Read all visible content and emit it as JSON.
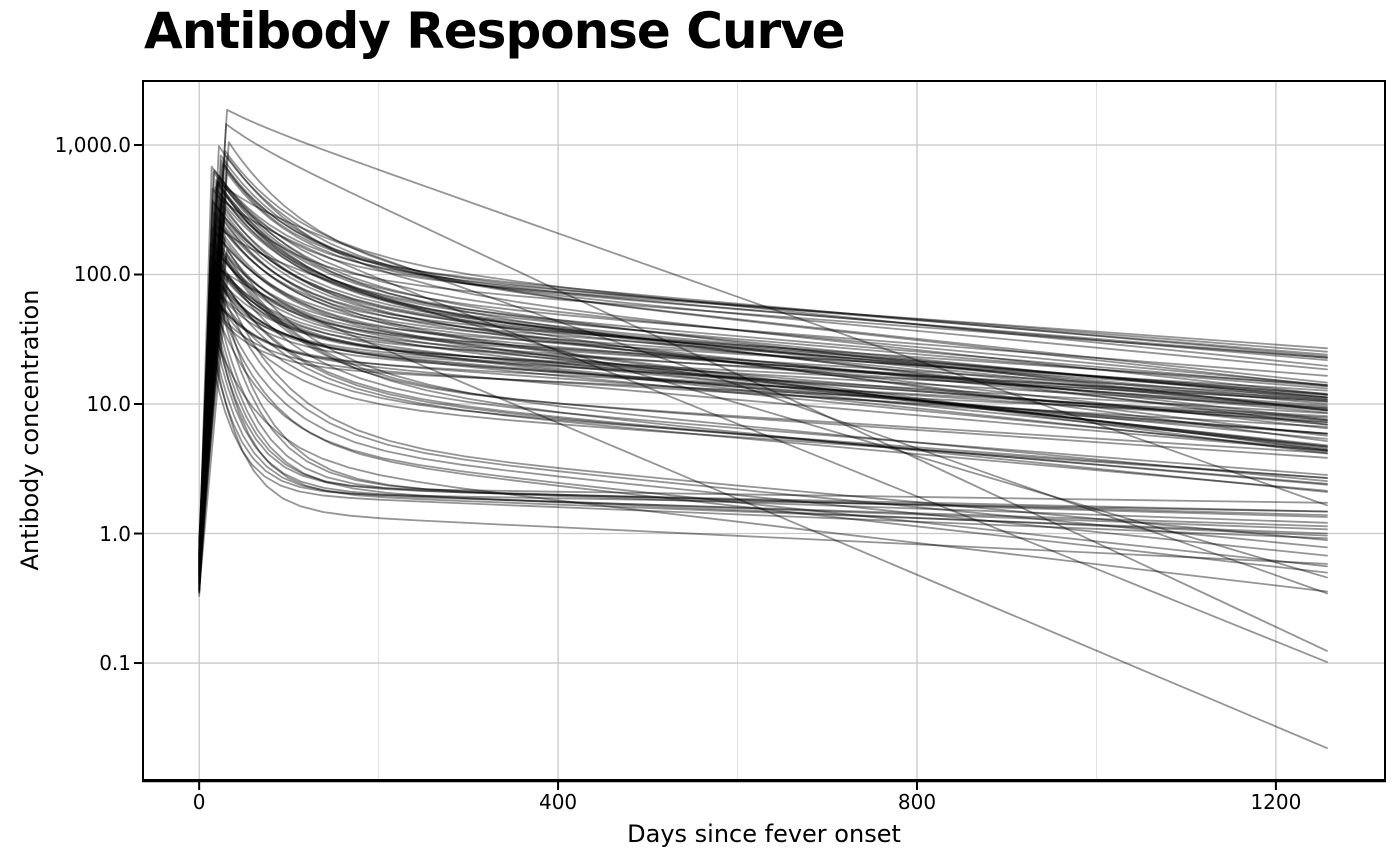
{
  "chart_data": {
    "type": "line",
    "title": "Antibody Response Curve",
    "xlabel": "Days since fever onset",
    "ylabel": "Antibody concentration",
    "x_ticks": [
      {
        "value": 0,
        "label": "0"
      },
      {
        "value": 400,
        "label": "400"
      },
      {
        "value": 800,
        "label": "800"
      },
      {
        "value": 1200,
        "label": "1200"
      }
    ],
    "x_minor_gridlines": [
      200,
      600,
      1000
    ],
    "y_ticks": [
      {
        "value": 1000,
        "label": "1,000.0"
      },
      {
        "value": 100,
        "label": "100.0"
      },
      {
        "value": 10,
        "label": "10.0"
      },
      {
        "value": 1,
        "label": "1.0"
      },
      {
        "value": 0.1,
        "label": "0.1"
      }
    ],
    "x_domain": [
      -62.6,
      1321.6
    ],
    "y_log_domain": [
      -1.903,
      3.494
    ],
    "grid": true,
    "legend": false,
    "y_scale": "log10",
    "line_color": "#000000",
    "line_alpha": 0.42,
    "line_width": 1.8,
    "major_grid_color": "#c8c8c8",
    "minor_grid_color": "#dcdcdc",
    "t_start": 0,
    "t_end": 1257,
    "n_curves": 100,
    "model": "Per curve params [y0, P, tp, D1, T, r2]: value rises log-linearly from y0 at day 0 to peak P at day tp, then log10 v(t) = log10(P) - r2*(t-tp) - D1*(1 - exp(-(t-tp)/T))",
    "curves": [
      [
        0.52,
        210,
        18,
        0.62,
        70,
        0.00062
      ],
      [
        0.71,
        85,
        24,
        0.48,
        55,
        0.00055
      ],
      [
        0.44,
        460,
        15,
        0.82,
        90,
        0.00071
      ],
      [
        0.6,
        130,
        28,
        0.55,
        60,
        0.00048
      ],
      [
        0.38,
        320,
        21,
        0.7,
        75,
        0.00085
      ],
      [
        0.9,
        55,
        16,
        0.42,
        50,
        0.0004
      ],
      [
        0.47,
        700,
        26,
        0.75,
        85,
        0.00058
      ],
      [
        0.66,
        175,
        13,
        0.6,
        65,
        0.00078
      ],
      [
        0.55,
        95,
        30,
        0.52,
        58,
        0.00035
      ],
      [
        0.41,
        540,
        19,
        0.88,
        95,
        0.00092
      ],
      [
        0.78,
        240,
        23,
        0.66,
        72,
        0.00052
      ],
      [
        0.36,
        68,
        17,
        0.45,
        48,
        0.0006
      ],
      [
        0.58,
        390,
        27,
        0.78,
        88,
        0.00066
      ],
      [
        0.69,
        150,
        20,
        0.58,
        62,
        0.00044
      ],
      [
        0.49,
        820,
        31,
        0.92,
        100,
        0.00075
      ],
      [
        0.85,
        110,
        14,
        0.5,
        56,
        0.0007
      ],
      [
        0.43,
        280,
        25,
        0.72,
        78,
        0.00088
      ],
      [
        0.62,
        47,
        22,
        0.38,
        45,
        0.00032
      ],
      [
        0.53,
        620,
        16,
        0.85,
        92,
        0.0008
      ],
      [
        0.74,
        195,
        29,
        0.64,
        68,
        0.00057
      ],
      [
        0.4,
        88,
        12,
        0.46,
        52,
        0.00049
      ],
      [
        0.67,
        350,
        24,
        0.74,
        82,
        0.00061
      ],
      [
        0.51,
        125,
        18,
        0.56,
        60,
        0.00073
      ],
      [
        0.33,
        480,
        28,
        0.8,
        86,
        0.00054
      ],
      [
        0.81,
        72,
        21,
        0.44,
        54,
        0.00045
      ],
      [
        0.46,
        230,
        15,
        0.68,
        74,
        0.00083
      ],
      [
        0.59,
        160,
        26,
        0.59,
        64,
        0.00051
      ],
      [
        0.72,
        520,
        20,
        0.83,
        90,
        0.00069
      ],
      [
        0.37,
        100,
        32,
        0.53,
        58,
        0.00041
      ],
      [
        0.64,
        300,
        17,
        0.71,
        76,
        0.00077
      ],
      [
        0.56,
        58,
        23,
        0.4,
        46,
        0.00037
      ],
      [
        0.48,
        410,
        30,
        0.79,
        84,
        0.00063
      ],
      [
        0.7,
        140,
        13,
        0.57,
        61,
        0.00059
      ],
      [
        0.42,
        260,
        27,
        0.69,
        73,
        0.00047
      ],
      [
        0.88,
        92,
        19,
        0.49,
        53,
        0.00067
      ],
      [
        0.5,
        580,
        22,
        0.86,
        94,
        0.00086
      ],
      [
        0.63,
        185,
        16,
        0.63,
        66,
        0.00043
      ],
      [
        0.39,
        78,
        25,
        0.43,
        49,
        0.00056
      ],
      [
        0.76,
        330,
        29,
        0.76,
        80,
        0.00072
      ],
      [
        0.45,
        115,
        21,
        0.54,
        59,
        0.00039
      ],
      [
        0.61,
        680,
        14,
        0.89,
        96,
        0.00064
      ],
      [
        0.54,
        205,
        24,
        0.65,
        69,
        0.00081
      ],
      [
        0.83,
        63,
        18,
        0.41,
        47,
        0.0005
      ],
      [
        0.35,
        440,
        26,
        0.81,
        87,
        0.00058
      ],
      [
        0.68,
        155,
        31,
        0.61,
        63,
        0.00046
      ],
      [
        0.57,
        270,
        19,
        0.7,
        75,
        0.0009
      ],
      [
        0.44,
        105,
        23,
        0.51,
        57,
        0.00053
      ],
      [
        0.79,
        370,
        15,
        0.77,
        83,
        0.00068
      ],
      [
        0.52,
        82,
        28,
        0.47,
        51,
        0.00042
      ],
      [
        0.65,
        500,
        20,
        0.84,
        91,
        0.00079
      ],
      [
        0.6,
        760,
        25,
        0.75,
        70,
        0.00062
      ],
      [
        0.48,
        900,
        29,
        0.8,
        88,
        0.0007
      ],
      [
        0.71,
        640,
        17,
        0.72,
        79,
        0.00055
      ],
      [
        0.55,
        1050,
        33,
        0.95,
        98,
        0.00074
      ],
      [
        0.66,
        560,
        21,
        0.7,
        77,
        0.0005
      ],
      [
        0.42,
        830,
        24,
        0.85,
        90,
        0.00065
      ],
      [
        0.74,
        470,
        18,
        0.67,
        74,
        0.00052
      ],
      [
        0.5,
        720,
        27,
        0.78,
        85,
        0.0006
      ],
      [
        0.63,
        980,
        22,
        0.9,
        95,
        0.00077
      ],
      [
        0.57,
        610,
        31,
        0.73,
        81,
        0.00057
      ],
      [
        0.45,
        38,
        13,
        1.25,
        34,
        0.00022
      ],
      [
        0.58,
        52,
        16,
        1.35,
        40,
        0.00018
      ],
      [
        0.37,
        29,
        11,
        1.15,
        30,
        0.00028
      ],
      [
        0.52,
        64,
        18,
        1.45,
        46,
        0.00015
      ],
      [
        0.68,
        44,
        14,
        1.3,
        36,
        0.00025
      ],
      [
        0.41,
        75,
        20,
        1.5,
        50,
        0.0002
      ],
      [
        0.55,
        33,
        12,
        1.2,
        32,
        0.00012
      ],
      [
        0.47,
        57,
        17,
        1.4,
        43,
        0.0003
      ],
      [
        0.62,
        48,
        15,
        1.32,
        38,
        0.0001
      ],
      [
        0.36,
        40,
        19,
        1.28,
        35,
        0.00026
      ],
      [
        0.59,
        85,
        22,
        1.55,
        52,
        0.00024
      ],
      [
        0.49,
        36,
        13,
        1.38,
        33,
        0.00033
      ],
      [
        0.4,
        1450,
        30,
        0.08,
        40,
        0.00325
      ],
      [
        0.53,
        380,
        24,
        0.12,
        45,
        0.0028
      ],
      [
        0.46,
        120,
        16,
        0.1,
        42,
        0.00293
      ],
      [
        0.61,
        520,
        21,
        0.15,
        48,
        0.00245
      ],
      [
        0.38,
        240,
        18,
        0.18,
        50,
        0.00205
      ],
      [
        0.56,
        1870,
        31,
        0.05,
        44,
        0.00245
      ],
      [
        0.7,
        120,
        25,
        0.95,
        85,
        0.00055
      ],
      [
        0.44,
        95,
        19,
        0.88,
        78,
        0.00062
      ],
      [
        0.58,
        160,
        23,
        1.02,
        92,
        0.0007
      ],
      [
        0.35,
        70,
        16,
        0.82,
        72,
        0.00048
      ],
      [
        0.66,
        135,
        28,
        0.98,
        88,
        0.00043
      ],
      [
        0.51,
        105,
        21,
        0.92,
        80,
        0.00058
      ],
      [
        0.73,
        180,
        26,
        1.05,
        95,
        0.00065
      ],
      [
        0.39,
        86,
        14,
        0.86,
        75,
        0.00052
      ],
      [
        0.62,
        145,
        30,
        1.0,
        90,
        0.00047
      ],
      [
        0.47,
        115,
        17,
        0.94,
        82,
        0.0006
      ],
      [
        0.54,
        60,
        15,
        1.1,
        60,
        0.00075
      ],
      [
        0.43,
        90,
        20,
        1.22,
        70,
        0.00068
      ],
      [
        0.65,
        42,
        12,
        1.05,
        55,
        0.00082
      ],
      [
        0.5,
        74,
        18,
        1.16,
        65,
        0.00071
      ],
      [
        0.37,
        55,
        24,
        1.08,
        58,
        0.00078
      ],
      [
        0.6,
        100,
        22,
        1.26,
        74,
        0.00064
      ],
      [
        0.56,
        420,
        23,
        0.76,
        84,
        0.00059
      ],
      [
        0.48,
        165,
        19,
        0.62,
        67,
        0.00074
      ],
      [
        0.69,
        310,
        27,
        0.73,
        79,
        0.00056
      ],
      [
        0.42,
        135,
        15,
        0.58,
        63,
        0.00066
      ],
      [
        0.75,
        225,
        29,
        0.67,
        71,
        0.0005
      ],
      [
        0.53,
        355,
        17,
        0.75,
        81,
        0.00063
      ]
    ]
  }
}
